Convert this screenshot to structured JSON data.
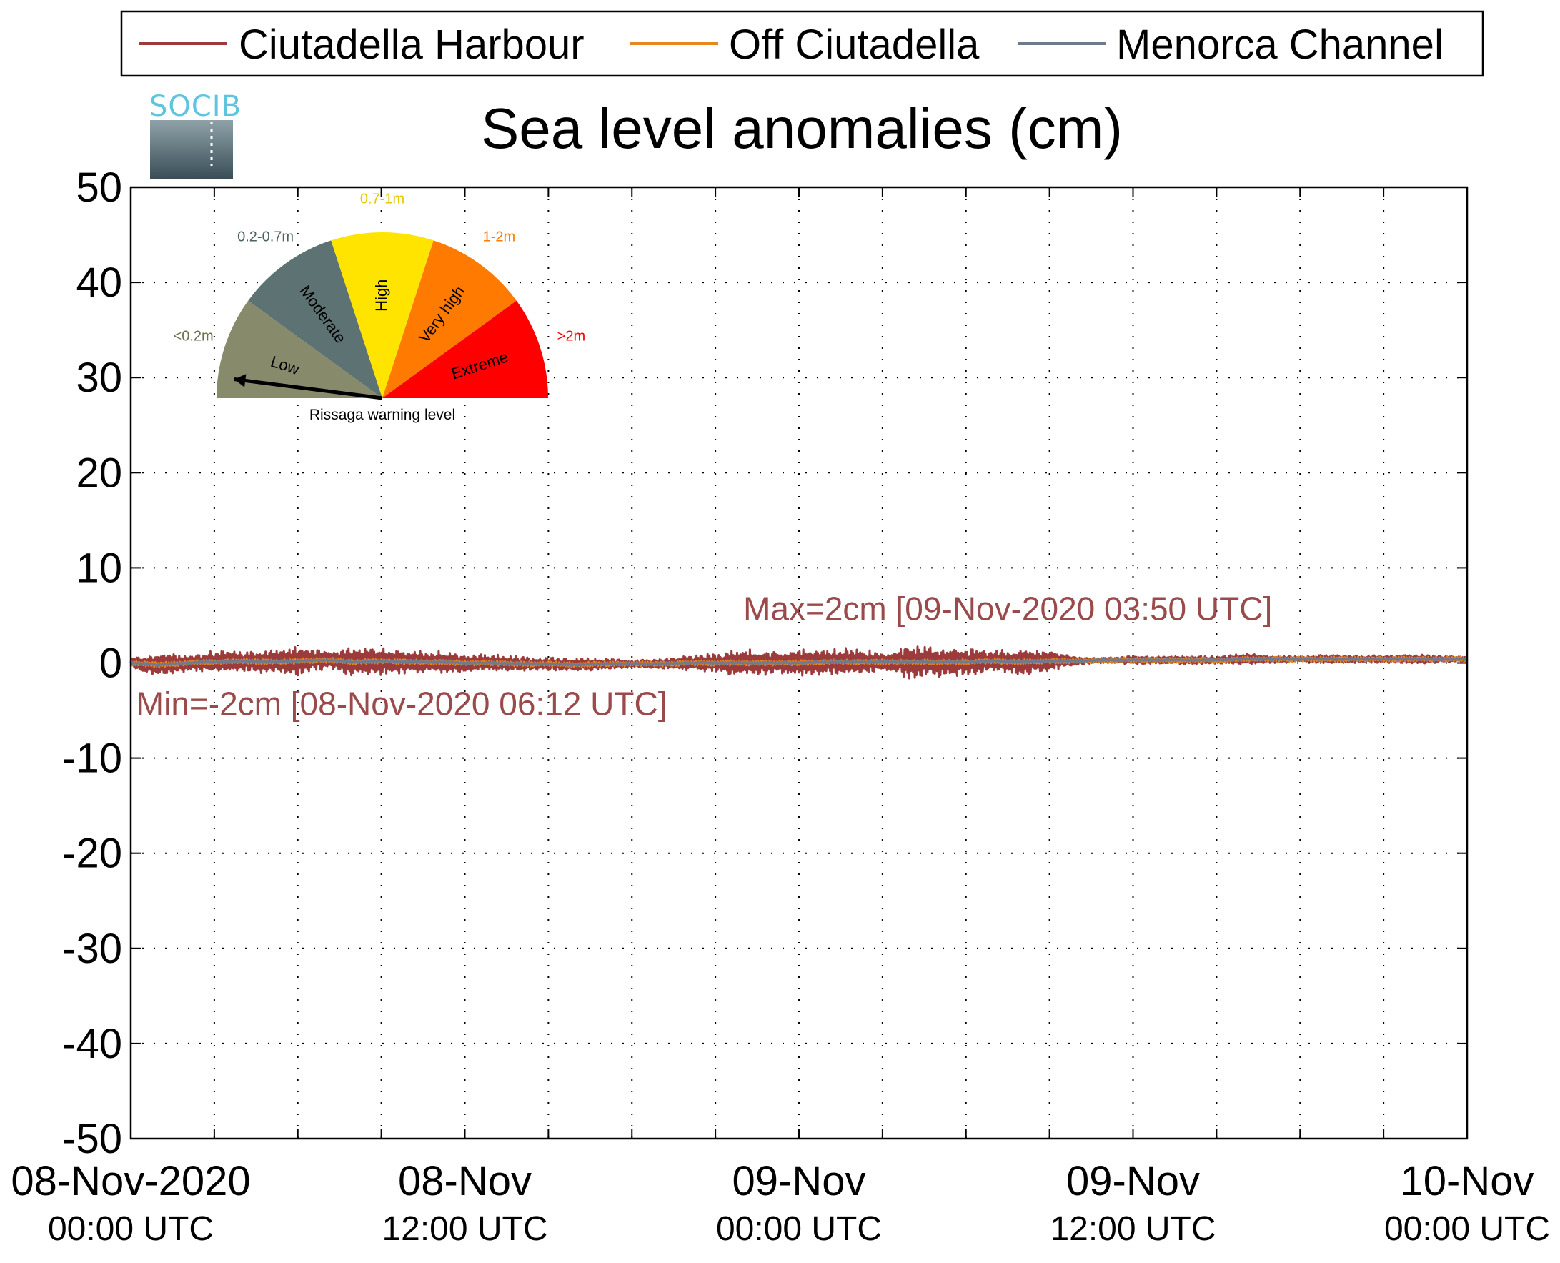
{
  "chart_data": {
    "type": "line",
    "title": "Sea level anomalies (cm)",
    "ylim": [
      -50,
      50
    ],
    "y_ticks": [
      "50",
      "40",
      "30",
      "20",
      "10",
      "0",
      "-10",
      "-20",
      "-30",
      "-40",
      "-50"
    ],
    "y_tick_values": [
      50,
      40,
      30,
      20,
      10,
      0,
      -10,
      -20,
      -30,
      -40,
      -50
    ],
    "x_range_hours": [
      0,
      48
    ],
    "x_tick_labels": [
      {
        "line1": "08-Nov-2020",
        "line2": "00:00 UTC"
      },
      {
        "line1": "08-Nov",
        "line2": "12:00 UTC"
      },
      {
        "line1": "09-Nov",
        "line2": "00:00 UTC"
      },
      {
        "line1": "09-Nov",
        "line2": "12:00 UTC"
      },
      {
        "line1": "10-Nov",
        "line2": "00:00 UTC"
      }
    ],
    "grid": "dotted",
    "legend_position": "top",
    "series": [
      {
        "name": "Ciutadella Harbour",
        "color": "#9b3b3b",
        "envelope_hours": [
          0,
          1,
          2,
          3,
          4,
          5,
          6,
          7,
          8,
          9,
          10,
          11,
          12,
          13,
          14,
          15,
          16,
          17,
          18,
          19,
          20,
          21,
          22,
          23,
          24,
          25,
          26,
          27,
          28,
          29,
          30,
          31,
          32,
          33,
          34,
          35,
          36,
          37,
          38,
          39,
          40,
          41,
          42,
          43,
          44,
          45,
          46,
          47,
          48
        ],
        "envelope_cm": [
          0.6,
          1.3,
          0.9,
          1.2,
          1.1,
          1.3,
          1.6,
          1.0,
          1.6,
          1.5,
          1.2,
          1.2,
          1.0,
          0.9,
          0.8,
          0.7,
          0.7,
          0.6,
          0.4,
          0.5,
          0.8,
          1.0,
          1.5,
          1.2,
          1.5,
          1.4,
          1.5,
          1.0,
          1.8,
          1.6,
          1.5,
          1.1,
          1.4,
          1.2,
          0.4,
          0.3,
          0.5,
          0.4,
          0.5,
          0.4,
          0.6,
          0.4,
          0.3,
          0.5,
          0.4,
          0.4,
          0.5,
          0.4,
          0.3
        ],
        "baseline_cm": [
          0,
          -0.2,
          0,
          0.1,
          0.2,
          0.1,
          0.2,
          0.3,
          0.1,
          0.2,
          0.1,
          0.1,
          0,
          0,
          -0.1,
          -0.1,
          -0.2,
          -0.1,
          -0.1,
          -0.1,
          0,
          0,
          0,
          0,
          0,
          0.1,
          0.1,
          0.1,
          0.1,
          0.1,
          0.1,
          0.2,
          0.1,
          0.2,
          0.2,
          0.3,
          0.3,
          0.3,
          0.3,
          0.3,
          0.4,
          0.4,
          0.4,
          0.4,
          0.4,
          0.4,
          0.4,
          0.4,
          0.4
        ]
      },
      {
        "name": "Off Ciutadella",
        "color": "#e8861f",
        "envelope_cm_default": 0.3
      },
      {
        "name": "Menorca Channel",
        "color": "#6f7a8f",
        "envelope_cm_default": 0.15
      }
    ],
    "annotations": [
      {
        "text": "Max=2cm [09-Nov-2020 03:50 UTC]",
        "x_hours": 22,
        "y_cm": 4.5
      },
      {
        "text": "Min=-2cm [08-Nov-2020 06:12 UTC]",
        "x_hours": 0.2,
        "y_cm": -5.5
      }
    ]
  },
  "logo": {
    "text": "SOCIB"
  },
  "gauge": {
    "caption": "Rissaga warning level",
    "needle_level": "Low",
    "segments": [
      {
        "label": "Low",
        "range": "<0.2m",
        "color": "#878a6b",
        "range_color": "#6b6d4d"
      },
      {
        "label": "Moderate",
        "range": "0.2-0.7m",
        "color": "#5d7272",
        "range_color": "#4d6262"
      },
      {
        "label": "High",
        "range": "0.7-1m",
        "color": "#ffe400",
        "range_color": "#e6c800"
      },
      {
        "label": "Very high",
        "range": "1-2m",
        "color": "#ff7a00",
        "range_color": "#ff7a00"
      },
      {
        "label": "Extreme",
        "range": ">2m",
        "color": "#ff0000",
        "range_color": "#ff0000"
      }
    ]
  }
}
